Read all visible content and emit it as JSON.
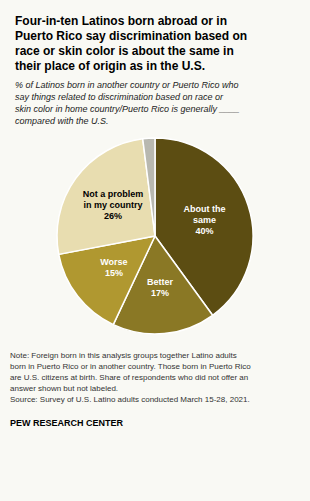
{
  "chart_data": {
    "type": "pie",
    "title": "Four-in-ten Latinos born abroad or in\nPuerto Rico say discrimination based on\nrace or skin color is about the same in\ntheir place of origin as in the U.S.",
    "subtitle": "% of Latinos born in another country or Puerto Rico who\nsay things related to discrimination based on race or\nskin color in home country/Puerto Rico is generally ____\ncompared with the U.S.",
    "categories": [
      "About the\nsame",
      "Better",
      "Worse",
      "Not a problem\nin my country",
      null
    ],
    "values": [
      40,
      17,
      15,
      26,
      2
    ],
    "value_labels": [
      "40%",
      "17%",
      "15%",
      "26%",
      null
    ],
    "data_labels": true,
    "colors": [
      "#5c4d12",
      "#8a7825",
      "#b09830",
      "#e8ddb0",
      "#b8b8b0"
    ],
    "note": "Note: Foreign born in this analysis groups together Latino adults\nborn in Puerto Rico or in another country. Those born in Puerto Rico\nare U.S. citizens at birth. Share of respondents who did not offer an\nanswer shown but not labeled.\nSource: Survey of U.S. Latino adults conducted March 15-28, 2021.",
    "source": "PEW RESEARCH CENTER"
  }
}
